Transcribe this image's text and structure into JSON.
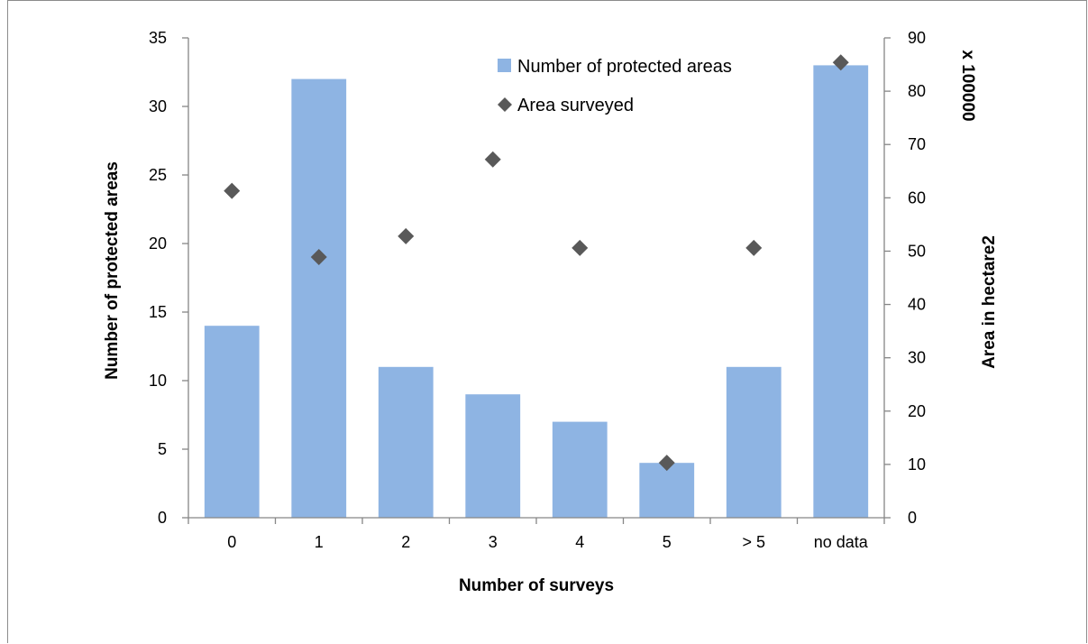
{
  "chart_data": {
    "type": "bar",
    "categories": [
      "0",
      "1",
      "2",
      "3",
      "4",
      "5",
      "> 5",
      "no data"
    ],
    "series": [
      {
        "name": "Number of protected areas",
        "kind": "bar",
        "axis": "left",
        "values": [
          14,
          32,
          11,
          9,
          7,
          4,
          11,
          33
        ]
      },
      {
        "name": "Area surveyed",
        "kind": "scatter",
        "marker": "diamond",
        "axis": "right",
        "values": [
          61.3,
          48.9,
          52.8,
          67.2,
          50.6,
          10.3,
          50.6,
          85.4
        ]
      }
    ],
    "xlabel": "Number of surveys",
    "ylabel": "Number of protected areas",
    "y2label": "Area in hectare2",
    "y2multiplier": "x 100000",
    "ylim": [
      0,
      35
    ],
    "yticks": [
      "0",
      "5",
      "10",
      "15",
      "20",
      "25",
      "30",
      "35"
    ],
    "y2lim": [
      0,
      90
    ],
    "y2ticks": [
      "0",
      "10",
      "20",
      "30",
      "40",
      "50",
      "60",
      "70",
      "80",
      "90"
    ],
    "grid": false,
    "legend": "top-right"
  },
  "colors": {
    "bar": "#8eb4e3",
    "marker": "#595959",
    "axis": "#868686"
  }
}
